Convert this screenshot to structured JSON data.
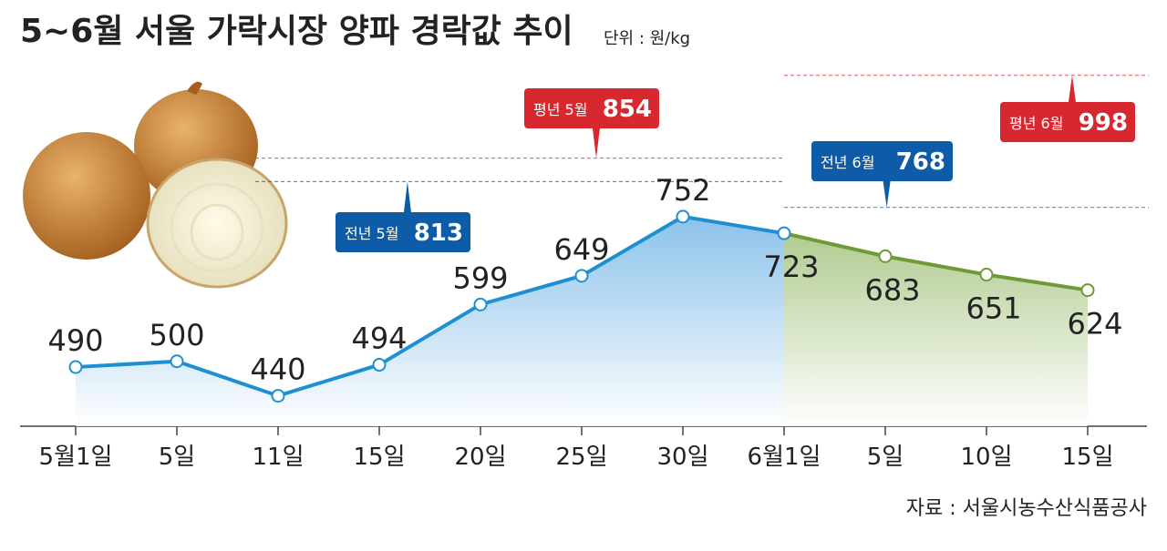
{
  "chart_data": {
    "type": "line",
    "title": "5~6월 서울 가락시장 양파 경락값 추이",
    "subtitle": "단위 : 원/kg",
    "source": "자료 : 서울시농수산식품공사",
    "categories": [
      "5월1일",
      "5일",
      "11일",
      "15일",
      "20일",
      "25일",
      "30일",
      "6월1일",
      "5일",
      "10일",
      "15일"
    ],
    "series": [
      {
        "color": "#1e90d2",
        "values": [
          490,
          500,
          440,
          494,
          599,
          649,
          752,
          723,
          null,
          null,
          null
        ]
      },
      {
        "color": "#6f9a35",
        "values": [
          null,
          null,
          null,
          null,
          null,
          null,
          null,
          723,
          683,
          651,
          624
        ]
      }
    ],
    "reference_lines": [
      {
        "label": "평년 5월",
        "value": 854,
        "color": "#d7282f"
      },
      {
        "label": "전년 5월",
        "value": 813,
        "color": "#0e5ca8"
      },
      {
        "label": "전년 6월",
        "value": 768,
        "color": "#0e5ca8"
      },
      {
        "label": "평년 6월",
        "value": 998,
        "color": "#d7282f"
      }
    ],
    "ylim": [
      387,
      1050
    ]
  }
}
